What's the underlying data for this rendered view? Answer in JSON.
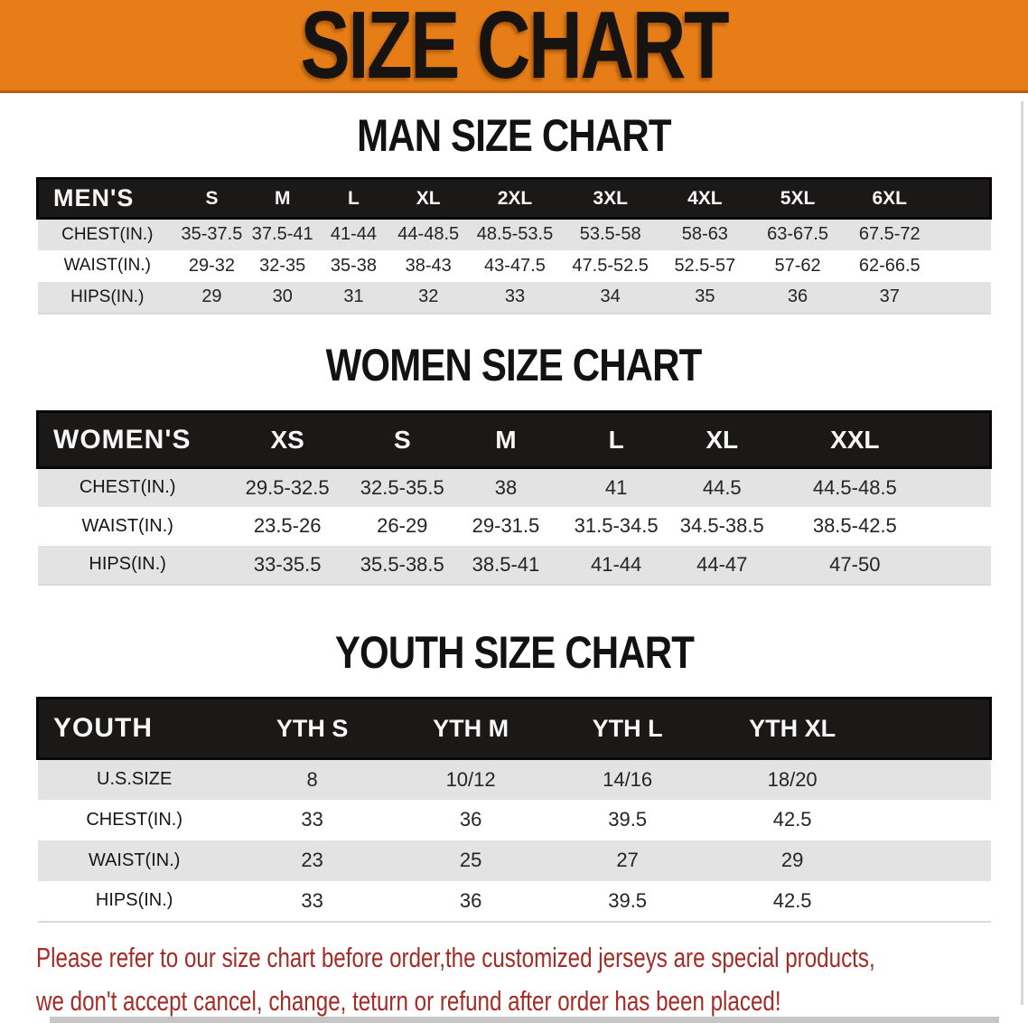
{
  "banner": {
    "title": "SIZE CHART"
  },
  "colors": {
    "banner_bg": "#e67d17",
    "banner_border": "#b95c0e",
    "header_bar": "#1b1818",
    "row_stripe": "#e3e3e3",
    "disclaimer_red": "#a42b26"
  },
  "sections": [
    {
      "title": "MAN SIZE CHART",
      "table": {
        "group_label": "MEN'S",
        "columns": [
          "S",
          "M",
          "L",
          "XL",
          "2XL",
          "3XL",
          "4XL",
          "5XL",
          "6XL"
        ],
        "rows": [
          {
            "label": "CHEST(IN.)",
            "values": [
              "35-37.5",
              "37.5-41",
              "41-44",
              "44-48.5",
              "48.5-53.5",
              "53.5-58",
              "58-63",
              "63-67.5",
              "67.5-72"
            ]
          },
          {
            "label": "WAIST(IN.)",
            "values": [
              "29-32",
              "32-35",
              "35-38",
              "38-43",
              "43-47.5",
              "47.5-52.5",
              "52.5-57",
              "57-62",
              "62-66.5"
            ]
          },
          {
            "label": "HIPS(IN.)",
            "values": [
              "29",
              "30",
              "31",
              "32",
              "33",
              "34",
              "35",
              "36",
              "37"
            ]
          }
        ]
      }
    },
    {
      "title": "WOMEN SIZE CHART",
      "table": {
        "group_label": "WOMEN'S",
        "columns": [
          "XS",
          "S",
          "M",
          "L",
          "XL",
          "XXL"
        ],
        "rows": [
          {
            "label": "CHEST(IN.)",
            "values": [
              "29.5-32.5",
              "32.5-35.5",
              "38",
              "41",
              "44.5",
              "44.5-48.5"
            ]
          },
          {
            "label": "WAIST(IN.)",
            "values": [
              "23.5-26",
              "26-29",
              "29-31.5",
              "31.5-34.5",
              "34.5-38.5",
              "38.5-42.5"
            ]
          },
          {
            "label": "HIPS(IN.)",
            "values": [
              "33-35.5",
              "35.5-38.5",
              "38.5-41",
              "41-44",
              "44-47",
              "47-50"
            ]
          }
        ]
      }
    },
    {
      "title": "YOUTH SIZE CHART",
      "table": {
        "group_label": "YOUTH",
        "columns": [
          "YTH S",
          "YTH M",
          "YTH L",
          "YTH XL"
        ],
        "rows": [
          {
            "label": "U.S.SIZE",
            "values": [
              "8",
              "10/12",
              "14/16",
              "18/20"
            ]
          },
          {
            "label": "CHEST(IN.)",
            "values": [
              "33",
              "36",
              "39.5",
              "42.5"
            ]
          },
          {
            "label": "WAIST(IN.)",
            "values": [
              "23",
              "25",
              "27",
              "29"
            ]
          },
          {
            "label": "HIPS(IN.)",
            "values": [
              "33",
              "36",
              "39.5",
              "42.5"
            ]
          }
        ]
      }
    }
  ],
  "footnote": {
    "line1": "Please refer to our size chart before order,the customized jerseys are special products,",
    "line2": "we don't accept cancel, change, teturn or refund after order has been placed!"
  }
}
